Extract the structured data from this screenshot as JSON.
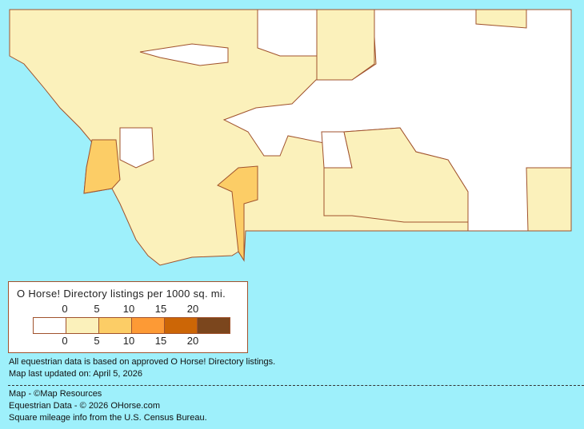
{
  "map": {
    "region": "Montana counties",
    "colors": {
      "0": "#ffffff",
      "0-5": "#fbf1bb",
      "5-10": "#fccd66",
      "10-15": "#fd9a35",
      "15-20": "#cc6606",
      "20+": "#7b461d",
      "border": "#a0522d",
      "background": "#9ef0fb"
    }
  },
  "legend": {
    "title": "O Horse! Directory listings per 1000 sq. mi.",
    "top_ticks": [
      "0",
      "5",
      "10",
      "15",
      "20"
    ],
    "bottom_ticks": [
      "0",
      "5",
      "10",
      "15",
      "20"
    ],
    "swatches": [
      "#ffffff",
      "#fbf1bb",
      "#fccd66",
      "#fd9a35",
      "#cc6606",
      "#7b461d"
    ]
  },
  "notes": {
    "line1": "All equestrian data is based on approved O Horse! Directory listings.",
    "line2": "Map last updated on: April 5, 2026"
  },
  "credits": {
    "map": "Map - ©Map Resources",
    "data": "Equestrian Data - © 2026 OHorse.com",
    "census": "Square mileage info from the U.S. Census Bureau."
  }
}
